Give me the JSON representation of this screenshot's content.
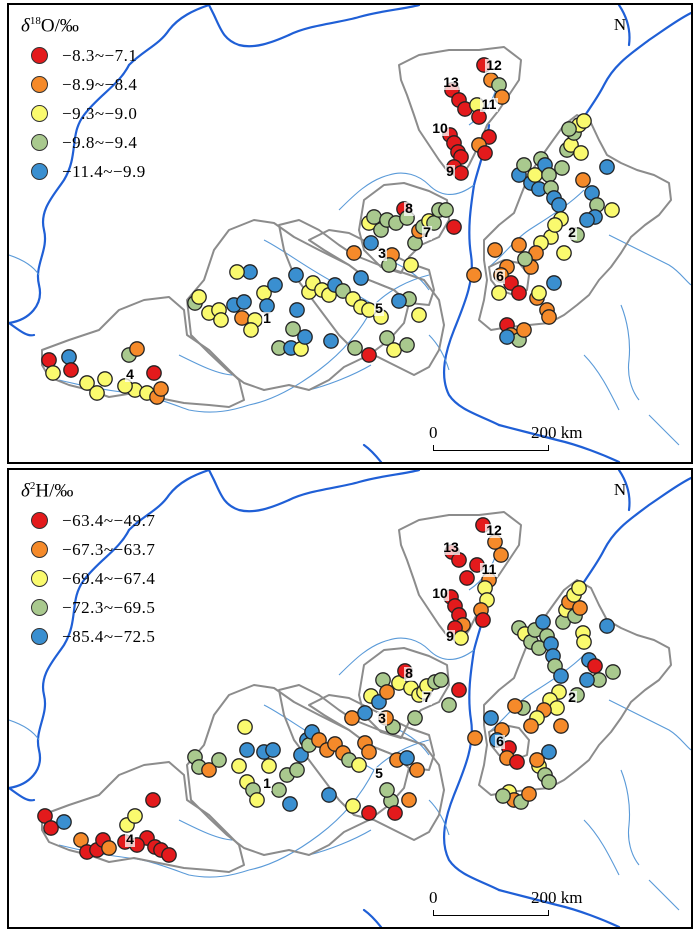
{
  "panels": [
    {
      "id": "d18O",
      "title_symbol": "δ",
      "title_sup": "18",
      "title_rest": "O/‰",
      "classes": [
        {
          "label": "−8.3~−7.1",
          "color": "#e31a1c"
        },
        {
          "label": "−8.9~−8.4",
          "color": "#f58a2a"
        },
        {
          "label": "−9.3~−9.0",
          "color": "#fafa6e"
        },
        {
          "label": "−9.8~−9.4",
          "color": "#a9c98e"
        },
        {
          "label": "−11.4~−9.9",
          "color": "#3a8fd0"
        }
      ]
    },
    {
      "id": "d2H",
      "title_symbol": "δ",
      "title_sup": "2",
      "title_rest": "H/‰",
      "classes": [
        {
          "label": "−63.4~−49.7",
          "color": "#e31a1c"
        },
        {
          "label": "−67.3~−63.7",
          "color": "#f58a2a"
        },
        {
          "label": "−69.4~−67.4",
          "color": "#fafa6e"
        },
        {
          "label": "−72.3~−69.5",
          "color": "#a9c98e"
        },
        {
          "label": "−85.4~−72.5",
          "color": "#3a8fd0"
        }
      ]
    }
  ],
  "north_label": "N",
  "scale": {
    "zero": "0",
    "end": "200 km"
  },
  "region_labels": [
    "1",
    "2",
    "3",
    "4",
    "5",
    "6",
    "7",
    "8",
    "9",
    "10",
    "11",
    "12",
    "13"
  ],
  "colors": {
    "river_major": "#1f5fd6",
    "river_minor": "#5a9ad8",
    "basin_outline": "#8c8c8c"
  }
}
